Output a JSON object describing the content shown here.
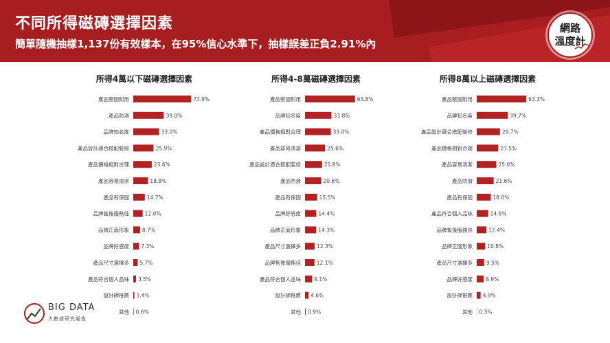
{
  "header": {
    "title": "不同所得磁磚選擇因素",
    "subtitle": "簡單隨機抽樣1,137份有效樣本，在95%信心水準下，抽樣誤差正負2.91%內"
  },
  "logo": {
    "line1": "網路",
    "line2": "溫度計"
  },
  "footer_logo": {
    "brand": "BIG DATA",
    "tagline": "大數據研究報告"
  },
  "colors": {
    "bar": "#b22222",
    "header": "#a81d1f",
    "text": "#333333"
  },
  "chart_data": [
    {
      "type": "bar",
      "orientation": "horizontal",
      "title": "所得4萬以下磁磚選擇因素",
      "categories": [
        "產品堅固耐用",
        "產品防滑",
        "品牌知名度",
        "產品設計適合搭配裝修",
        "產品價格相對合理",
        "產品容易清潔",
        "產品有保固",
        "品牌售後服務佳",
        "品牌正面形象",
        "品牌好感度",
        "產品尺寸選擇多",
        "產品符合個人品味",
        "設計師推薦",
        "其他"
      ],
      "values": [
        73.9,
        39.0,
        33.0,
        25.9,
        23.6,
        18.8,
        14.7,
        12.0,
        8.7,
        7.3,
        5.7,
        3.5,
        1.4,
        0.6
      ],
      "labels": [
        "73.9%",
        "39.0%",
        "33.0%",
        "25.9%",
        "23.6%",
        "18.8%",
        "14.7%",
        "12.0%",
        "8.7%",
        "7.3%",
        "5.7%",
        "3.5%",
        "1.4%",
        "0.6%"
      ],
      "xlim": [
        0,
        100
      ]
    },
    {
      "type": "bar",
      "orientation": "horizontal",
      "title": "所得4-8萬磁磚選擇因素",
      "categories": [
        "產品堅固耐用",
        "品牌知名度",
        "產品價格相對合理",
        "產品容易清潔",
        "產品設計適合搭配裝修",
        "產品防滑",
        "產品有保固",
        "品牌好感度",
        "品牌正面形象",
        "產品尺寸選擇多",
        "品牌售後服務佳",
        "產品符合個人品味",
        "設計師推薦",
        "其他"
      ],
      "values": [
        63.8,
        33.8,
        33.0,
        25.6,
        21.8,
        20.6,
        15.5,
        14.4,
        14.3,
        12.3,
        12.1,
        9.1,
        4.6,
        0.9
      ],
      "labels": [
        "63.8%",
        "33.8%",
        "33.0%",
        "25.6%",
        "21.8%",
        "20.6%",
        "15.5%",
        "14.4%",
        "14.3%",
        "12.3%",
        "12.1%",
        "9.1%",
        "4.6%",
        "0.9%"
      ],
      "xlim": [
        0,
        100
      ]
    },
    {
      "type": "bar",
      "orientation": "horizontal",
      "title": "所得8萬以上磁磚選擇因素",
      "categories": [
        "產品堅固耐用",
        "品牌知名度",
        "產品設計適合搭配裝修",
        "產品價格相對合理",
        "產品容易清潔",
        "產品防滑",
        "產品有保固",
        "產品符合個人品味",
        "品牌售後服務佳",
        "品牌正面形象",
        "產品尺寸選擇多",
        "品牌好感度",
        "設計師推薦",
        "其他"
      ],
      "values": [
        63.3,
        39.7,
        29.7,
        27.5,
        25.0,
        21.6,
        18.0,
        14.6,
        12.4,
        10.8,
        9.5,
        8.9,
        4.9,
        0.3
      ],
      "labels": [
        "63.3%",
        "39.7%",
        "29.7%",
        "27.5%",
        "25.0%",
        "21.6%",
        "18.0%",
        "14.6%",
        "12.4%",
        "10.8%",
        "9.5%",
        "8.9%",
        "4.9%",
        "0.3%"
      ],
      "xlim": [
        0,
        100
      ]
    }
  ]
}
